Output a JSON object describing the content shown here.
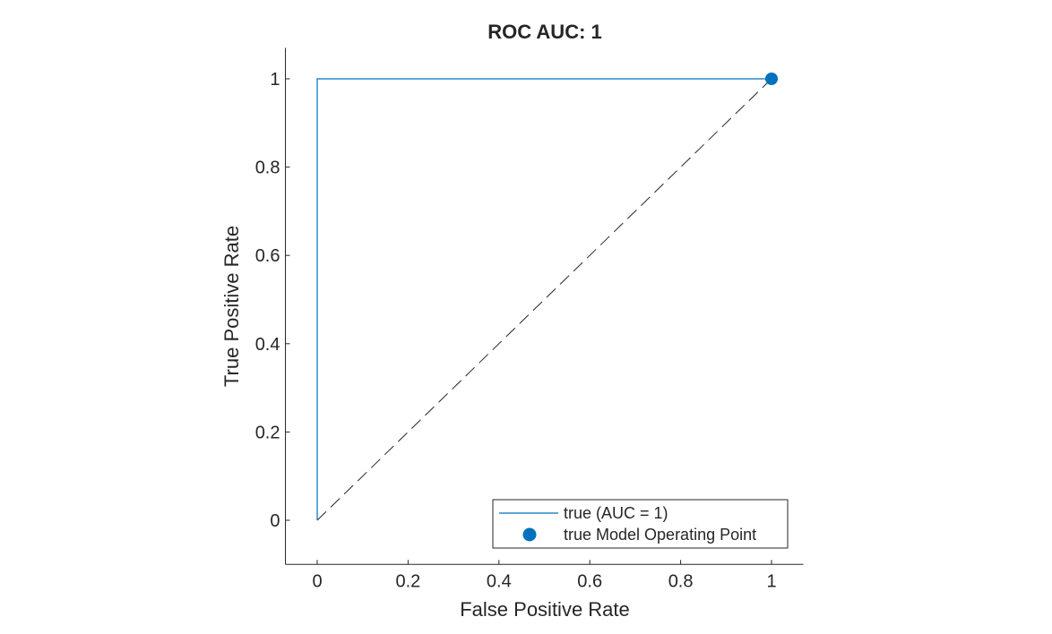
{
  "chart_data": {
    "type": "line",
    "title": "ROC AUC: 1",
    "xlabel": "False Positive Rate",
    "ylabel": "True Positive Rate",
    "xlim": [
      -0.07,
      1.07
    ],
    "ylim": [
      -0.1,
      1.07
    ],
    "x_ticks": [
      0,
      0.2,
      0.4,
      0.6,
      0.8,
      1
    ],
    "x_tick_labels": [
      "0",
      "0.2",
      "0.4",
      "0.6",
      "0.8",
      "1"
    ],
    "y_ticks": [
      0,
      0.2,
      0.4,
      0.6,
      0.8,
      1
    ],
    "y_tick_labels": [
      "0",
      "0.2",
      "0.4",
      "0.6",
      "0.8",
      "1"
    ],
    "grid": false,
    "legend_position": "bottom-right",
    "series": [
      {
        "name": "true (AUC = 1)",
        "kind": "line",
        "color": "#0072BD",
        "x": [
          0,
          0,
          1
        ],
        "y": [
          0,
          1,
          1
        ]
      },
      {
        "name": "true Model Operating Point",
        "kind": "point",
        "color": "#0072BD",
        "x": [
          1
        ],
        "y": [
          1
        ]
      }
    ],
    "reference_line": {
      "style": "dashed",
      "color": "#262626",
      "x": [
        0,
        1
      ],
      "y": [
        0,
        1
      ]
    }
  }
}
